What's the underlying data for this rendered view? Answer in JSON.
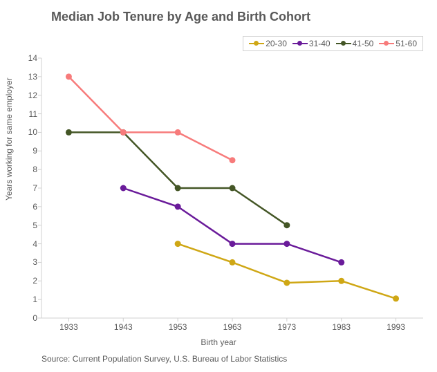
{
  "title": "Median Job Tenure by Age and Birth Cohort",
  "ylabel": "Years working for same employer",
  "xlabel": "Birth year",
  "source": "Source: Current Population Survey, U.S. Bureau of Labor Statistics",
  "chart": {
    "type": "line",
    "background_color": "#ffffff",
    "axis_color": "#d0d0d0",
    "text_color": "#595959",
    "title_fontsize": 18,
    "label_fontsize": 12,
    "tick_fontsize": 12,
    "line_width": 2.5,
    "marker_radius": 4.5,
    "x_categories": [
      "1933",
      "1943",
      "1953",
      "1963",
      "1973",
      "1983",
      "1993"
    ],
    "ylim": [
      0,
      14
    ],
    "ytick_step": 1,
    "series": [
      {
        "name": "20-30",
        "line_color": "#cfa715",
        "marker_color": "#cfa715",
        "data": [
          {
            "x": "1953",
            "y": 4.0
          },
          {
            "x": "1963",
            "y": 3.0
          },
          {
            "x": "1973",
            "y": 1.9
          },
          {
            "x": "1983",
            "y": 2.0
          },
          {
            "x": "1993",
            "y": 1.05
          }
        ]
      },
      {
        "name": "31-40",
        "line_color": "#6a1b9a",
        "marker_color": "#6a1b9a",
        "data": [
          {
            "x": "1943",
            "y": 7.0
          },
          {
            "x": "1953",
            "y": 6.0
          },
          {
            "x": "1963",
            "y": 4.0
          },
          {
            "x": "1973",
            "y": 4.0
          },
          {
            "x": "1983",
            "y": 3.0
          }
        ]
      },
      {
        "name": "41-50",
        "line_color": "#445626",
        "marker_color": "#445626",
        "data": [
          {
            "x": "1933",
            "y": 10.0
          },
          {
            "x": "1943",
            "y": 10.0
          },
          {
            "x": "1953",
            "y": 7.0
          },
          {
            "x": "1963",
            "y": 7.0
          },
          {
            "x": "1973",
            "y": 5.0
          }
        ]
      },
      {
        "name": "51-60",
        "line_color": "#f77b7b",
        "marker_color": "#f77b7b",
        "data": [
          {
            "x": "1933",
            "y": 13.0
          },
          {
            "x": "1943",
            "y": 10.0
          },
          {
            "x": "1953",
            "y": 10.0
          },
          {
            "x": "1963",
            "y": 8.5
          }
        ]
      }
    ]
  }
}
